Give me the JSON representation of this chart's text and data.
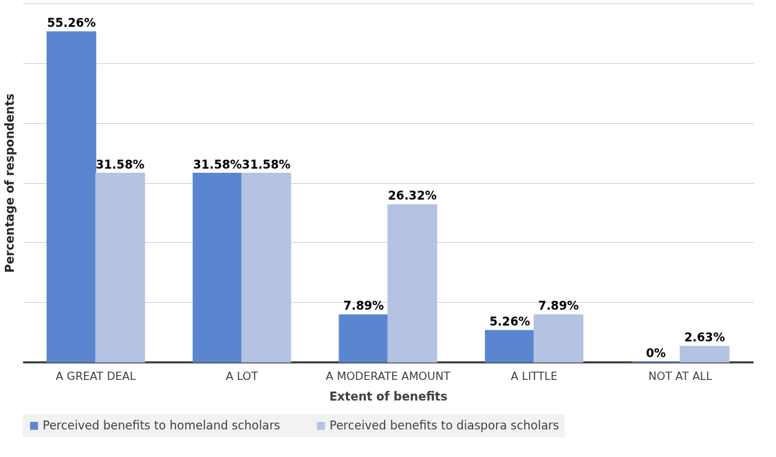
{
  "chart_data": {
    "type": "bar",
    "xlabel": "Extent of benefits",
    "ylabel": "Percentage of respondents",
    "categories": [
      "A GREAT DEAL",
      "A LOT",
      "A MODERATE AMOUNT",
      "A LITTLE",
      "NOT AT ALL"
    ],
    "series": [
      {
        "name": "Perceived benefits to homeland scholars",
        "color": "#5b86cf",
        "values": [
          55.26,
          31.58,
          7.89,
          5.26,
          0
        ],
        "value_labels": [
          "55.26%",
          "31.58%",
          "7.89%",
          "5.26%",
          "0%"
        ]
      },
      {
        "name": "Perceived benefits to diaspora scholars",
        "color": "#b4c2e3",
        "values": [
          31.58,
          31.58,
          26.32,
          7.89,
          2.63
        ],
        "value_labels": [
          "31.58%",
          "31.58%",
          "26.32%",
          "7.89%",
          "2.63%"
        ]
      }
    ],
    "ylim": [
      0,
      60
    ],
    "yticks": [
      {
        "value": 0,
        "label": null
      },
      {
        "value": 10,
        "label": null
      },
      {
        "value": 20,
        "label": null
      },
      {
        "value": 30,
        "label": null
      },
      {
        "value": 40,
        "label": null
      },
      {
        "value": 50,
        "label": null
      },
      {
        "value": 60,
        "label": null
      }
    ],
    "tick_labels": "x",
    "grid": "y",
    "legend": "bottom"
  }
}
